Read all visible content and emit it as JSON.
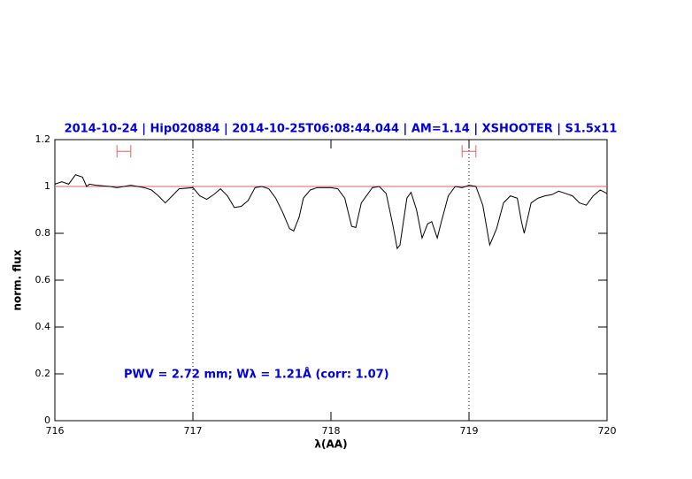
{
  "chart_data": {
    "type": "line",
    "title": "2014-10-24 | Hip020884 | 2014-10-25T06:08:44.044 | AM=1.14 | XSHOOTER | S1.5x11",
    "annotation": "PWV = 2.72 mm; Wλ = 1.21Å (corr: 1.07)",
    "xlabel": "λ(AA)",
    "ylabel": "norm. flux",
    "xlim": [
      716,
      720
    ],
    "ylim": [
      0,
      1.2
    ],
    "xticks": [
      716,
      717,
      718,
      719,
      720
    ],
    "yticks": [
      0,
      0.2,
      0.4,
      0.6,
      0.8,
      1,
      1.2
    ],
    "reference_line": {
      "y": 1,
      "color": "#e06060"
    },
    "vlines": [
      717,
      719
    ],
    "intervals": [
      {
        "x": [
          716.45,
          716.55
        ],
        "y": 1.15
      },
      {
        "x": [
          718.95,
          719.05
        ],
        "y": 1.15
      }
    ],
    "interval_color": "#e06060",
    "text_color": "#0000dd",
    "series": [
      {
        "color": "#000000",
        "x": [
          716.0,
          716.05,
          716.1,
          716.15,
          716.2,
          716.23,
          716.25,
          716.3,
          716.4,
          716.45,
          716.5,
          716.55,
          716.6,
          716.65,
          716.7,
          716.75,
          716.8,
          716.85,
          716.9,
          717.0,
          717.05,
          717.1,
          717.15,
          717.2,
          717.25,
          717.3,
          717.35,
          717.4,
          717.45,
          717.5,
          717.55,
          717.6,
          717.65,
          717.7,
          717.73,
          717.77,
          717.8,
          717.85,
          717.9,
          718.0,
          718.05,
          718.1,
          718.15,
          718.18,
          718.22,
          718.3,
          718.35,
          718.4,
          718.45,
          718.48,
          718.5,
          718.55,
          718.58,
          718.62,
          718.66,
          718.7,
          718.73,
          718.77,
          718.8,
          718.85,
          718.9,
          718.95,
          719.0,
          719.05,
          719.1,
          719.15,
          719.2,
          719.25,
          719.3,
          719.35,
          719.38,
          719.4,
          719.45,
          719.5,
          719.55,
          719.6,
          719.65,
          719.7,
          719.75,
          719.8,
          719.85,
          719.9,
          719.95,
          720.0
        ],
        "values": [
          1.01,
          1.02,
          1.01,
          1.05,
          1.04,
          1.0,
          1.01,
          1.005,
          1.0,
          0.995,
          1.0,
          1.005,
          1.0,
          0.995,
          0.985,
          0.96,
          0.93,
          0.96,
          0.99,
          0.995,
          0.96,
          0.945,
          0.965,
          0.99,
          0.96,
          0.91,
          0.915,
          0.94,
          0.995,
          1.0,
          0.99,
          0.95,
          0.89,
          0.82,
          0.81,
          0.87,
          0.95,
          0.985,
          0.995,
          0.995,
          0.99,
          0.95,
          0.83,
          0.825,
          0.93,
          0.995,
          1.0,
          0.97,
          0.83,
          0.735,
          0.75,
          0.95,
          0.975,
          0.9,
          0.78,
          0.84,
          0.85,
          0.78,
          0.85,
          0.96,
          1.0,
          0.995,
          1.005,
          1.0,
          0.92,
          0.75,
          0.82,
          0.93,
          0.96,
          0.95,
          0.85,
          0.8,
          0.93,
          0.95,
          0.96,
          0.965,
          0.98,
          0.97,
          0.96,
          0.93,
          0.92,
          0.96,
          0.985,
          0.97
        ]
      }
    ]
  }
}
